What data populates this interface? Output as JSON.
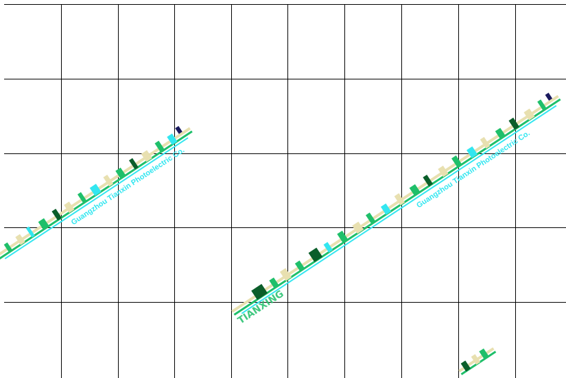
{
  "watermark": {
    "latin_text": "Guangzhou Tianxin Photoelectric Co.",
    "brand_text": "TIANXING",
    "colors": {
      "grid_line": "#000000",
      "background": "#ffffff",
      "cyan": "#33e6f0",
      "green": "#1fbf6a",
      "dark_green": "#0b5e2a",
      "cream": "#e8e0b0",
      "navy": "#1a1a5e"
    }
  }
}
